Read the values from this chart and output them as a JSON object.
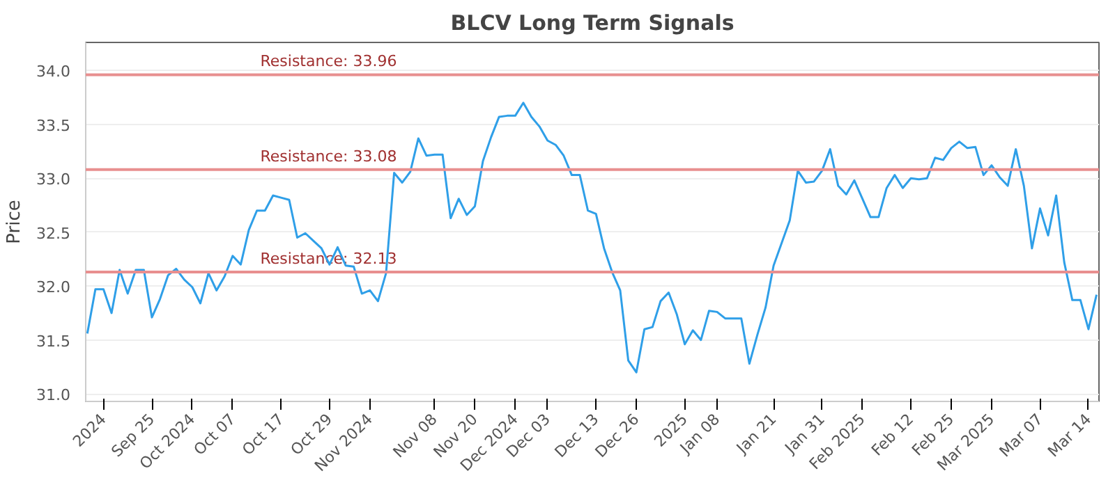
{
  "chart_data": {
    "type": "line",
    "title": "BLCV Long Term Signals",
    "ylabel": "Price",
    "categories": [
      null,
      null,
      "2024",
      null,
      null,
      null,
      null,
      null,
      "Sep 25",
      null,
      null,
      null,
      null,
      "Oct 2024",
      null,
      null,
      null,
      null,
      "Oct 07",
      null,
      null,
      null,
      null,
      null,
      "Oct 17",
      null,
      null,
      null,
      null,
      null,
      "Oct 29",
      null,
      null,
      null,
      null,
      "Nov 2024",
      null,
      null,
      null,
      null,
      null,
      null,
      null,
      "Nov 08",
      null,
      null,
      null,
      null,
      "Nov 20",
      null,
      null,
      null,
      null,
      "Dec 2024",
      null,
      null,
      null,
      "Dec 03",
      null,
      null,
      null,
      null,
      null,
      "Dec 13",
      null,
      null,
      null,
      null,
      "Dec 26",
      null,
      null,
      null,
      null,
      null,
      "2025",
      null,
      null,
      null,
      "Jan 08",
      null,
      null,
      null,
      null,
      null,
      null,
      "Jan 21",
      null,
      null,
      null,
      null,
      null,
      "Jan 31",
      null,
      null,
      null,
      null,
      "Feb 2025",
      null,
      null,
      null,
      null,
      null,
      "Feb 12",
      null,
      null,
      null,
      null,
      "Feb 25",
      null,
      null,
      null,
      null,
      "Mar 2025",
      null,
      null,
      null,
      null,
      null,
      "Mar 07",
      null,
      null,
      null,
      null,
      null,
      "Mar 14",
      null
    ],
    "series": [
      {
        "color": "#2f9fe8",
        "values": [
          31.56,
          31.97,
          31.97,
          31.75,
          32.15,
          31.93,
          32.15,
          32.15,
          31.71,
          31.88,
          32.1,
          32.16,
          32.06,
          31.99,
          31.84,
          32.12,
          31.96,
          32.09,
          32.28,
          32.2,
          32.52,
          32.7,
          32.7,
          32.84,
          32.82,
          32.8,
          32.45,
          32.49,
          32.42,
          32.35,
          32.2,
          32.36,
          32.19,
          32.18,
          31.93,
          31.96,
          31.86,
          32.12,
          33.05,
          32.96,
          33.06,
          33.37,
          33.21,
          33.22,
          33.22,
          32.63,
          32.81,
          32.66,
          32.74,
          33.16,
          33.38,
          33.57,
          33.58,
          33.58,
          33.7,
          33.57,
          33.48,
          33.35,
          33.31,
          33.21,
          33.03,
          33.03,
          32.7,
          32.67,
          32.35,
          32.13,
          31.96,
          31.31,
          31.2,
          31.6,
          31.62,
          31.86,
          31.94,
          31.74,
          31.46,
          31.59,
          31.5,
          31.77,
          31.76,
          31.7,
          31.7,
          31.7,
          31.28,
          31.55,
          31.8,
          32.19,
          32.4,
          32.61,
          33.07,
          32.96,
          32.97,
          33.07,
          33.27,
          32.93,
          32.85,
          32.98,
          32.81,
          32.64,
          32.64,
          32.91,
          33.03,
          32.91,
          33.0,
          32.99,
          33.0,
          33.19,
          33.17,
          33.28,
          33.34,
          33.28,
          33.29,
          33.03,
          33.12,
          33.01,
          32.93,
          33.27,
          32.93,
          32.35,
          32.72,
          32.47,
          32.84,
          32.22,
          31.87,
          31.87,
          31.6,
          31.92
        ]
      }
    ],
    "ylim": [
      30.93,
      34.26
    ],
    "yticks": [
      {
        "value": 31,
        "label": "31.0"
      },
      31.5,
      {
        "value": 32,
        "label": "32.0"
      },
      32.5,
      {
        "value": 33,
        "label": "33.0"
      },
      33.5,
      {
        "value": 34,
        "label": "34.0"
      }
    ],
    "grid": "y",
    "ref_lines": [
      {
        "axis": "y",
        "value": 33.96,
        "label": "Resistance: 33.96",
        "color": "#e88f8f"
      },
      {
        "axis": "y",
        "value": 33.08,
        "label": "Resistance: 33.08",
        "color": "#e88f8f"
      },
      {
        "axis": "y",
        "value": 32.13,
        "label": "Resistance: 32.13",
        "color": "#e88f8f"
      }
    ]
  }
}
